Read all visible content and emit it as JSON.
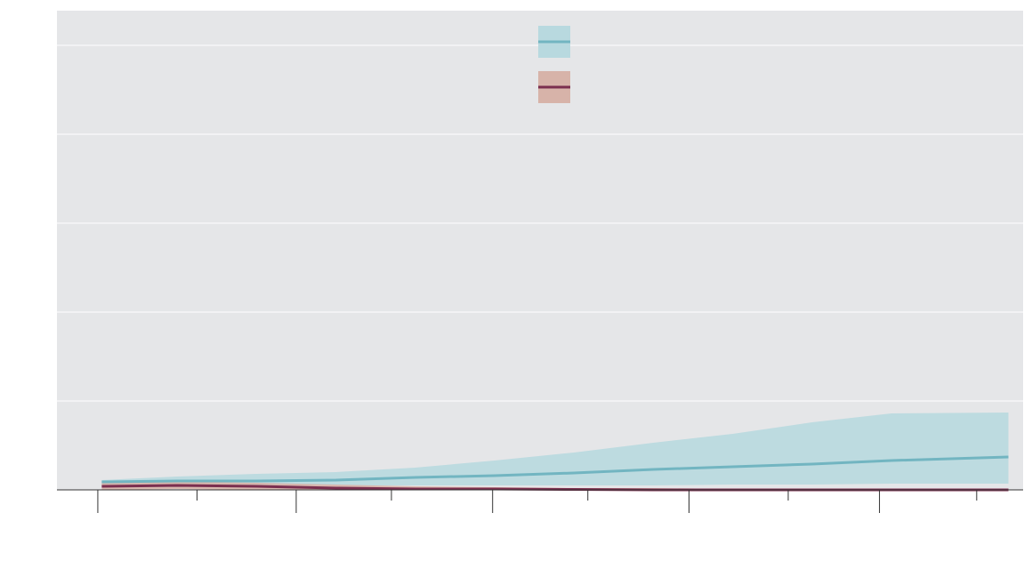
{
  "chart_data": {
    "type": "line",
    "x": [
      0.02,
      0.4,
      0.8,
      1.2,
      1.6,
      2.0,
      2.4,
      2.8,
      3.2,
      3.6,
      4.0,
      4.59
    ],
    "series": [
      {
        "color": "#72b5c1",
        "band_color": "#b8d9df",
        "values": [
          0.09,
          0.1,
          0.1,
          0.11,
          0.14,
          0.16,
          0.19,
          0.23,
          0.26,
          0.29,
          0.33,
          0.37
        ],
        "upper": [
          0.11,
          0.15,
          0.18,
          0.2,
          0.25,
          0.33,
          0.42,
          0.53,
          0.63,
          0.76,
          0.86,
          0.87
        ],
        "lower": [
          0.04,
          0.04,
          0.05,
          0.05,
          0.05,
          0.05,
          0.05,
          0.05,
          0.06,
          0.06,
          0.07,
          0.07
        ]
      },
      {
        "color": "#7b2f4f",
        "band_color": "#d7b3a9",
        "values": [
          0.04,
          0.05,
          0.04,
          0.02,
          0.01,
          0.01,
          0.005,
          0,
          0,
          0,
          0,
          0
        ],
        "upper": [
          0.09,
          0.09,
          0.08,
          0.06,
          0.04,
          0.03,
          0.02,
          0.02,
          0.01,
          0.01,
          0.01,
          0.01
        ],
        "lower": [
          0,
          0.01,
          0,
          0,
          0,
          0,
          0,
          0,
          0,
          0,
          0,
          0
        ]
      }
    ],
    "xlim": [
      -0.206,
      4.664
    ],
    "ylim": [
      0,
      5.39
    ],
    "yticks": [
      0,
      1,
      2,
      3,
      4,
      5
    ],
    "xticks": [
      0,
      1,
      1.99,
      2.98,
      3.94
    ],
    "xticks_minor": [
      0.5,
      1.48,
      2.47,
      3.48,
      4.43
    ],
    "grid": true,
    "legend": "top"
  }
}
